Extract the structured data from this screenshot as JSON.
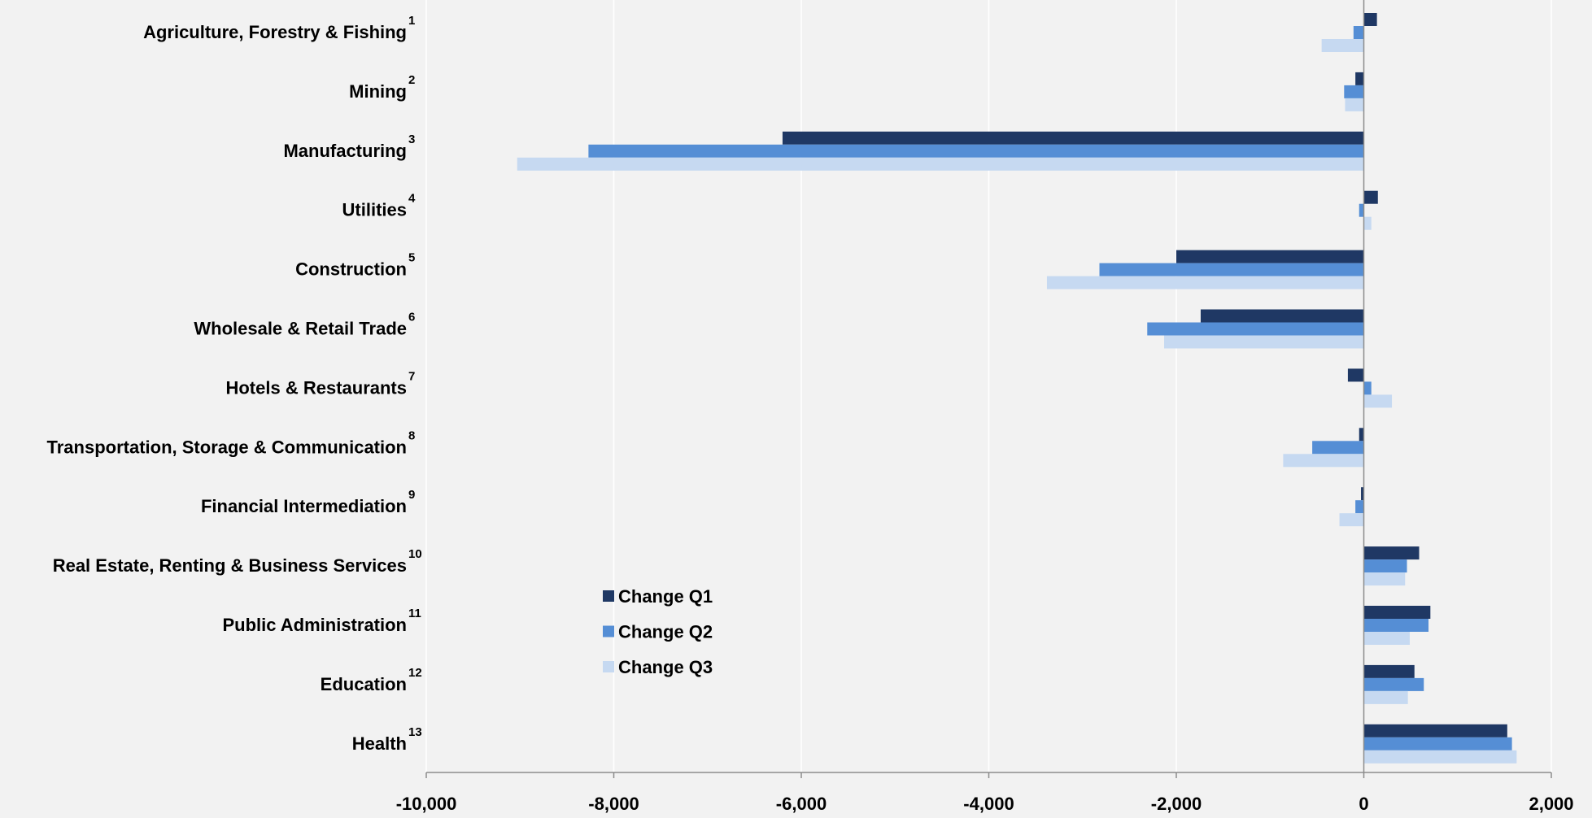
{
  "chart_data": {
    "type": "bar",
    "orientation": "horizontal",
    "title": "",
    "xlabel": "",
    "ylabel": "",
    "xlim": [
      -10000,
      2000
    ],
    "x_ticks": [
      -10000,
      -8000,
      -6000,
      -4000,
      -2000,
      0,
      2000
    ],
    "x_tick_labels": [
      "-10,000",
      "-8,000",
      "-6,000",
      "-4,000",
      "-2,000",
      "0",
      "2,000"
    ],
    "grid": "vertical",
    "legend_position": "lower-left inside plot",
    "categories": [
      {
        "label": "Agriculture, Forestry & Fishing",
        "footnote": "1"
      },
      {
        "label": "Mining",
        "footnote": "2"
      },
      {
        "label": "Manufacturing",
        "footnote": "3"
      },
      {
        "label": "Utilities",
        "footnote": "4"
      },
      {
        "label": "Construction",
        "footnote": "5"
      },
      {
        "label": "Wholesale & Retail Trade",
        "footnote": "6"
      },
      {
        "label": "Hotels & Restaurants",
        "footnote": "7"
      },
      {
        "label": "Transportation, Storage & Communication",
        "footnote": "8"
      },
      {
        "label": "Financial Intermediation",
        "footnote": "9"
      },
      {
        "label": "Real Estate, Renting & Business Services",
        "footnote": "10"
      },
      {
        "label": "Public Administration",
        "footnote": "11"
      },
      {
        "label": "Education",
        "footnote": "12"
      },
      {
        "label": "Health",
        "footnote": "13"
      }
    ],
    "series": [
      {
        "name": "Change Q1",
        "color": "#1f3864",
        "values": [
          140,
          -90,
          -6200,
          150,
          -2000,
          -1740,
          -170,
          -50,
          -30,
          590,
          710,
          540,
          1530
        ]
      },
      {
        "name": "Change Q2",
        "color": "#558ed5",
        "values": [
          -110,
          -210,
          -8270,
          -50,
          -2820,
          -2310,
          80,
          -550,
          -90,
          460,
          690,
          640,
          1580
        ]
      },
      {
        "name": "Change Q3",
        "color": "#c6d9f1",
        "values": [
          -450,
          -200,
          -9030,
          80,
          -3380,
          -2130,
          300,
          -860,
          -260,
          440,
          490,
          470,
          1630
        ]
      }
    ]
  }
}
